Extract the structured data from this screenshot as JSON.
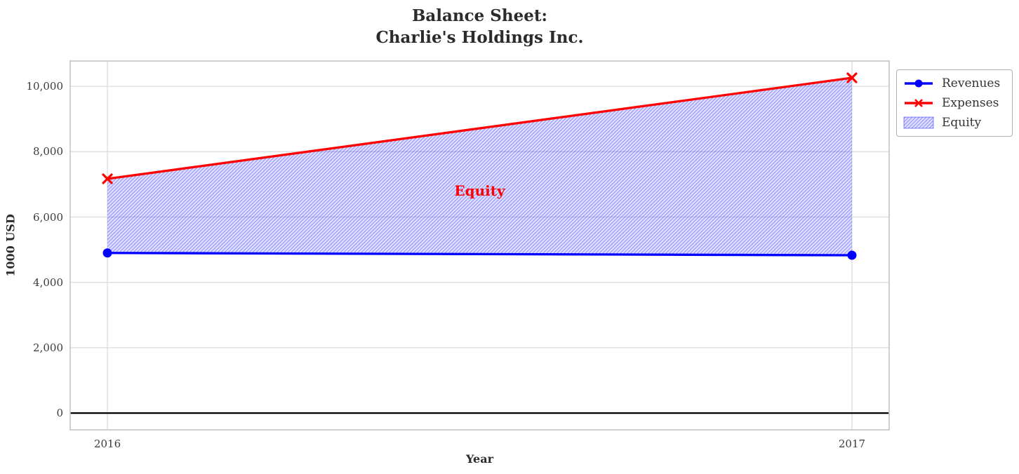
{
  "title": {
    "line1": "Balance Sheet:",
    "line2": "Charlie's Holdings Inc."
  },
  "chart_data": {
    "type": "line",
    "x": [
      2016,
      2017
    ],
    "x_tick_labels": [
      "2016",
      "2017"
    ],
    "series": [
      {
        "name": "Revenues",
        "values": [
          4900,
          4830
        ],
        "color": "#0000ff",
        "marker": "circle"
      },
      {
        "name": "Expenses",
        "values": [
          7170,
          10260
        ],
        "color": "#ff0000",
        "marker": "x"
      }
    ],
    "fill_between": {
      "name": "Equity",
      "lower_series": "Revenues",
      "upper_series": "Expenses",
      "facecolor": "rgba(0,0,255,0.13)",
      "hatch": "/",
      "hatch_color": "rgba(0,0,255,0.35)"
    },
    "annotation": {
      "text": "Equity",
      "x": 2016.5,
      "y": 6800,
      "color": "#ff0000"
    },
    "xlabel": "Year",
    "ylabel": "1000 USD",
    "xlim": [
      2015.95,
      2017.05
    ],
    "ylim": [
      -513,
      10775
    ],
    "y_ticks": [
      {
        "value": 0,
        "label": "0"
      },
      {
        "value": 2000,
        "label": "2,000"
      },
      {
        "value": 4000,
        "label": "4,000"
      },
      {
        "value": 6000,
        "label": "6,000"
      },
      {
        "value": 8000,
        "label": "8,000"
      },
      {
        "value": 10000,
        "label": "10,000"
      }
    ],
    "zero_line": {
      "value": 0,
      "color": "#000000"
    },
    "grid": true,
    "grid_color": "#dcdcdc",
    "spine_color": "#c4c4c4",
    "legend": {
      "position": "outside-upper-right",
      "entries": [
        {
          "label": "Revenues",
          "type": "line-circle",
          "color": "#0000ff"
        },
        {
          "label": "Expenses",
          "type": "line-x",
          "color": "#ff0000"
        },
        {
          "label": "Equity",
          "type": "hatched-patch",
          "color": "#0000ff"
        }
      ]
    }
  }
}
